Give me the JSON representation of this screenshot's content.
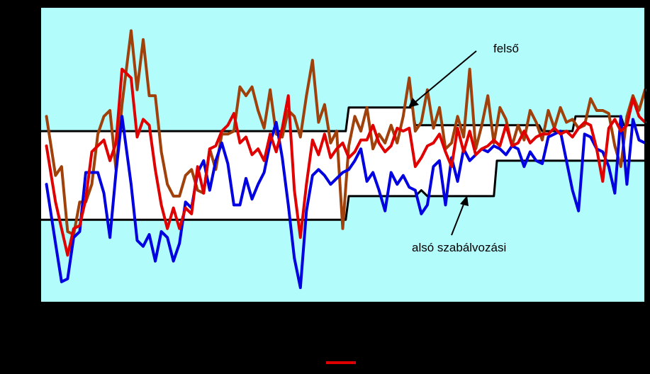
{
  "chart_data": {
    "type": "line",
    "title": "",
    "xlabel": "",
    "ylabel": "",
    "xlim": [
      0,
      200
    ],
    "ylim": [
      0,
      100
    ],
    "grid": false,
    "plot_background": "#b3fcfc",
    "annotations": [
      {
        "text": "felső",
        "target": "upper-limit"
      },
      {
        "text": "alsó szabálvozási",
        "target": "lower-limit"
      }
    ],
    "legend": {
      "placement": "bottom-center",
      "entries": [
        {
          "color": "#e00000",
          "label": ""
        }
      ]
    },
    "series": [
      {
        "role": "upper-band",
        "color": "#a0400a",
        "x": [
          2,
          5,
          7,
          9,
          11,
          13,
          15,
          17,
          19,
          21,
          23,
          25,
          27,
          30,
          32,
          34,
          36,
          38,
          40,
          42,
          44,
          46,
          48,
          50,
          52,
          54,
          56,
          58,
          60,
          62,
          64,
          66,
          68,
          70,
          72,
          74,
          76,
          78,
          80,
          82,
          84,
          86,
          88,
          90,
          92,
          94,
          96,
          98,
          100,
          102,
          104,
          106,
          108,
          110,
          112,
          114,
          116,
          118,
          120,
          122,
          124,
          126,
          128,
          130,
          132,
          134,
          136,
          138,
          140,
          142,
          144,
          146,
          148,
          150,
          152,
          154,
          156,
          158,
          160,
          162,
          164,
          166,
          168,
          170,
          172,
          174,
          176,
          178,
          180,
          182,
          184,
          186,
          188,
          190,
          192,
          194,
          196,
          198,
          200
        ],
        "values": [
          63,
          43,
          46,
          24,
          23,
          34,
          34,
          40,
          57,
          63,
          65,
          45,
          67,
          92,
          72,
          89,
          70,
          70,
          51,
          40,
          36,
          36,
          43,
          45,
          38,
          37,
          52,
          45,
          57,
          57,
          58,
          73,
          70,
          73,
          65,
          59,
          72,
          57,
          56,
          65,
          63,
          56,
          70,
          82,
          61,
          67,
          54,
          58,
          25,
          53,
          63,
          58,
          66,
          52,
          57,
          54,
          60,
          54,
          63,
          76,
          58,
          61,
          72,
          59,
          66,
          52,
          54,
          63,
          56,
          79,
          52,
          60,
          70,
          54,
          66,
          62,
          53,
          60,
          55,
          65,
          61,
          55,
          65,
          59,
          66,
          61,
          62,
          59,
          60,
          69,
          65,
          65,
          64,
          53,
          46,
          63,
          70,
          65,
          72
        ]
      },
      {
        "role": "middle",
        "color": "#e00000",
        "x": [
          2,
          5,
          7,
          9,
          11,
          13,
          15,
          17,
          19,
          21,
          23,
          25,
          27,
          30,
          32,
          34,
          36,
          38,
          40,
          42,
          44,
          46,
          48,
          50,
          52,
          54,
          56,
          58,
          60,
          62,
          64,
          66,
          68,
          70,
          72,
          74,
          76,
          78,
          80,
          82,
          84,
          86,
          88,
          90,
          92,
          94,
          96,
          98,
          100,
          102,
          104,
          106,
          108,
          110,
          112,
          114,
          116,
          118,
          120,
          122,
          124,
          126,
          128,
          130,
          132,
          134,
          136,
          138,
          140,
          142,
          144,
          146,
          148,
          150,
          152,
          154,
          156,
          158,
          160,
          162,
          164,
          166,
          168,
          170,
          172,
          174,
          176,
          178,
          180,
          182,
          184,
          186,
          188,
          190,
          192,
          194,
          196,
          198,
          200
        ],
        "values": [
          53,
          34,
          25,
          16,
          25,
          26,
          35,
          51,
          53,
          55,
          48,
          54,
          79,
          76,
          56,
          62,
          60,
          45,
          33,
          25,
          32,
          25,
          32,
          30,
          46,
          37,
          52,
          53,
          58,
          60,
          64,
          54,
          56,
          50,
          52,
          48,
          57,
          51,
          59,
          70,
          38,
          22,
          40,
          55,
          50,
          57,
          49,
          52,
          54,
          49,
          51,
          55,
          55,
          60,
          54,
          51,
          53,
          59,
          58,
          59,
          46,
          49,
          53,
          54,
          57,
          51,
          46,
          59,
          51,
          58,
          50,
          52,
          53,
          55,
          53,
          60,
          53,
          54,
          58,
          54,
          56,
          57,
          57,
          59,
          57,
          58,
          56,
          59,
          61,
          60,
          52,
          41,
          59,
          62,
          58,
          60,
          69,
          63,
          61
        ]
      },
      {
        "role": "lower-band",
        "color": "#0000e0",
        "x": [
          2,
          5,
          7,
          9,
          11,
          13,
          15,
          17,
          19,
          21,
          23,
          25,
          27,
          30,
          32,
          34,
          36,
          38,
          40,
          42,
          44,
          46,
          48,
          50,
          52,
          54,
          56,
          58,
          60,
          62,
          64,
          66,
          68,
          70,
          72,
          74,
          76,
          78,
          80,
          82,
          84,
          86,
          88,
          90,
          92,
          94,
          96,
          98,
          100,
          102,
          104,
          106,
          108,
          110,
          112,
          114,
          116,
          118,
          120,
          122,
          124,
          126,
          128,
          130,
          132,
          134,
          136,
          138,
          140,
          142,
          144,
          146,
          148,
          150,
          152,
          154,
          156,
          158,
          160,
          162,
          164,
          166,
          168,
          170,
          172,
          174,
          176,
          178,
          180,
          182,
          184,
          186,
          188,
          190,
          192,
          194,
          196,
          198,
          200
        ],
        "values": [
          40,
          20,
          7,
          8,
          22,
          24,
          44,
          44,
          44,
          37,
          22,
          44,
          63,
          40,
          21,
          19,
          23,
          14,
          24,
          22,
          14,
          20,
          34,
          32,
          44,
          48,
          38,
          48,
          54,
          47,
          33,
          33,
          42,
          35,
          40,
          44,
          54,
          61,
          49,
          33,
          15,
          5,
          31,
          43,
          45,
          43,
          40,
          42,
          44,
          45,
          48,
          52,
          41,
          44,
          38,
          31,
          44,
          40,
          43,
          39,
          38,
          30,
          33,
          46,
          48,
          33,
          49,
          41,
          52,
          48,
          50,
          52,
          51,
          53,
          52,
          50,
          53,
          52,
          46,
          51,
          48,
          47,
          56,
          57,
          58,
          48,
          38,
          31,
          57,
          56,
          52,
          51,
          46,
          37,
          63,
          40,
          62,
          55,
          54
        ]
      },
      {
        "role": "upper-limit",
        "color": "#000000",
        "step": true,
        "x": [
          0,
          101,
          102,
          123,
          124,
          150,
          151,
          165,
          166,
          176,
          177,
          192,
          193,
          200
        ],
        "values": [
          58,
          58,
          66,
          66,
          60,
          60,
          60,
          60,
          58,
          58,
          63,
          63,
          60,
          60
        ]
      },
      {
        "role": "lower-limit",
        "color": "#000000",
        "step": true,
        "x": [
          0,
          101,
          102,
          124,
          126,
          128,
          150,
          151,
          200
        ],
        "values": [
          28,
          28,
          36,
          36,
          38,
          36,
          36,
          48,
          48
        ]
      }
    ]
  }
}
